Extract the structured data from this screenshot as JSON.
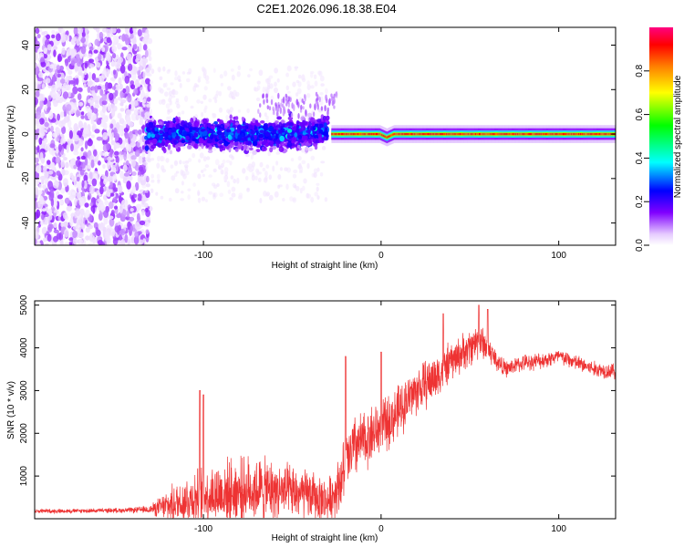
{
  "figure_title": "C2E1.2026.096.18.38.E04",
  "chart_data": [
    {
      "type": "heatmap",
      "title": "C2E1.2026.096.18.38.E04",
      "xlabel": "Height of straight line (km)",
      "ylabel": "Frequency (Hz)",
      "xlim": [
        -195,
        132
      ],
      "ylim": [
        -50,
        48
      ],
      "x_ticks": [
        -100,
        0,
        100
      ],
      "y_ticks": [
        -40,
        -20,
        0,
        20,
        40
      ],
      "x_tick_labels": [
        "-100",
        "0",
        "100"
      ],
      "y_tick_labels": [
        "-40",
        "-20",
        "0",
        "20",
        "40"
      ],
      "colorbar": {
        "label": "Normalized spectral amplitude",
        "range": [
          0,
          1
        ],
        "ticks": [
          0.0,
          0.2,
          0.4,
          0.6,
          0.8
        ],
        "tick_labels": [
          "0.0",
          "0.2",
          "0.4",
          "0.6",
          "0.8"
        ],
        "colors": [
          "#ffffff",
          "#e6ccff",
          "#8000ff",
          "#0000ff",
          "#00ffff",
          "#00ff00",
          "#ffff00",
          "#ff8000",
          "#ff0000",
          "#ff00aa"
        ]
      },
      "regions": [
        {
          "name": "diffuse noise",
          "x_range": [
            -195,
            -130
          ],
          "freq_range": [
            -50,
            48
          ],
          "amplitude": 0.15
        },
        {
          "name": "scattered signal",
          "x_range": [
            -132,
            -30
          ],
          "freq_center": 0,
          "freq_halfwidth": 8,
          "amplitude": 0.35
        },
        {
          "name": "coherent line",
          "x_range": [
            -28,
            132
          ],
          "freq_center": 0,
          "freq_halfwidth": 2,
          "amplitude": 0.85
        }
      ]
    },
    {
      "type": "line",
      "xlabel": "Height of straight line (km)",
      "ylabel": "SNR (10 * v/v)",
      "xlim": [
        -195,
        132
      ],
      "ylim": [
        0,
        5100
      ],
      "x_ticks": [
        -100,
        0,
        100
      ],
      "y_ticks": [
        1000,
        2000,
        3000,
        4000,
        5000
      ],
      "x_tick_labels": [
        "-100",
        "0",
        "100"
      ],
      "y_tick_labels": [
        "1000",
        "2000",
        "3000",
        "4000",
        "5000"
      ],
      "series": [
        {
          "name": "SNR",
          "color": "#ee3333",
          "x": [
            -195,
            -180,
            -160,
            -140,
            -130,
            -120,
            -110,
            -100,
            -90,
            -80,
            -70,
            -60,
            -50,
            -40,
            -30,
            -25,
            -20,
            -15,
            -10,
            -5,
            0,
            5,
            10,
            15,
            20,
            30,
            40,
            50,
            55,
            60,
            65,
            70,
            80,
            90,
            100,
            110,
            120,
            132
          ],
          "mean": [
            180,
            180,
            190,
            200,
            220,
            300,
            450,
            550,
            600,
            650,
            700,
            650,
            600,
            550,
            400,
            700,
            1200,
            1700,
            1800,
            2000,
            2100,
            2300,
            2500,
            2800,
            3000,
            3300,
            3700,
            4000,
            4200,
            4000,
            3700,
            3500,
            3650,
            3700,
            3800,
            3650,
            3500,
            3450
          ],
          "spread": [
            80,
            80,
            80,
            100,
            150,
            600,
            900,
            1100,
            1200,
            1200,
            1200,
            1100,
            1000,
            900,
            800,
            1000,
            1300,
            1200,
            1100,
            1100,
            1000,
            1000,
            1000,
            900,
            900,
            900,
            700,
            700,
            700,
            500,
            400,
            300,
            300,
            300,
            300,
            300,
            300,
            300
          ],
          "peaks": [
            [
              -102,
              3000
            ],
            [
              -100,
              2900
            ],
            [
              -20,
              3800
            ],
            [
              0,
              3900
            ],
            [
              35,
              4800
            ],
            [
              55,
              5000
            ],
            [
              60,
              4900
            ]
          ]
        }
      ]
    }
  ]
}
